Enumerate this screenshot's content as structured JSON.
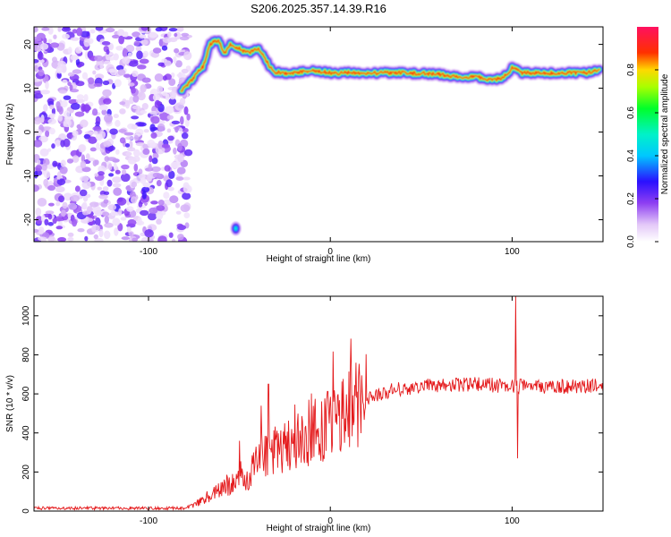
{
  "title": "S206.2025.357.14.39.R16",
  "chart_data": [
    {
      "type": "heatmap",
      "name": "spectrogram",
      "xlabel": "Height of straight line (km)",
      "ylabel": "Frequency (Hz)",
      "xlim": [
        -163,
        150
      ],
      "ylim": [
        -25,
        24
      ],
      "xticks": [
        -100,
        0,
        100
      ],
      "yticks": [
        -20,
        -10,
        0,
        10,
        20
      ],
      "noise_region_x": [
        -163,
        -80
      ],
      "signal_track": {
        "x": [
          -82,
          -78,
          -74,
          -70,
          -66,
          -62,
          -58,
          -55,
          -50,
          -45,
          -40,
          -36,
          -32,
          -28,
          -20,
          -10,
          0,
          10,
          20,
          40,
          60,
          70,
          75,
          80,
          85,
          90,
          95,
          98,
          100,
          105,
          120,
          140,
          148
        ],
        "freq": [
          9.5,
          11,
          13,
          15,
          20,
          21,
          18,
          20,
          19,
          18,
          19,
          17,
          14,
          13.5,
          13.5,
          14,
          13.5,
          13.5,
          13.5,
          13.5,
          13.2,
          12.5,
          12.5,
          12.8,
          12,
          12,
          12.5,
          13.5,
          15,
          13.5,
          13.5,
          13.5,
          14
        ]
      },
      "colorbar": {
        "label": "Normalized spectral amplitude",
        "range": [
          0,
          1
        ],
        "ticks": [
          0.0,
          0.2,
          0.4,
          0.6,
          0.8
        ]
      }
    },
    {
      "type": "line",
      "name": "snr",
      "xlabel": "Height of straight line (km)",
      "ylabel": "SNR (10 * v/v)",
      "xlim": [
        -163,
        150
      ],
      "ylim": [
        0,
        1100
      ],
      "xticks": [
        -100,
        0,
        100
      ],
      "yticks": [
        0,
        200,
        400,
        600,
        800,
        1000
      ],
      "color": "#e41a1c",
      "envelope": {
        "x": [
          -163,
          -80,
          -75,
          -70,
          -60,
          -50,
          -45,
          -40,
          -30,
          -20,
          -10,
          0,
          10,
          20,
          30,
          40,
          60,
          80,
          100,
          120,
          150
        ],
        "y": [
          15,
          15,
          30,
          60,
          110,
          170,
          150,
          280,
          310,
          350,
          400,
          440,
          510,
          580,
          610,
          630,
          645,
          650,
          640,
          635,
          640
        ]
      },
      "spikes": [
        {
          "x": -50,
          "y": 360
        },
        {
          "x": -38,
          "y": 540
        },
        {
          "x": -34,
          "y": 650
        },
        {
          "x": 4,
          "y": 590
        },
        {
          "x": 14,
          "y": 760
        },
        {
          "x": 102,
          "y": 1100
        },
        {
          "x": 103,
          "y": 270
        }
      ]
    }
  ]
}
